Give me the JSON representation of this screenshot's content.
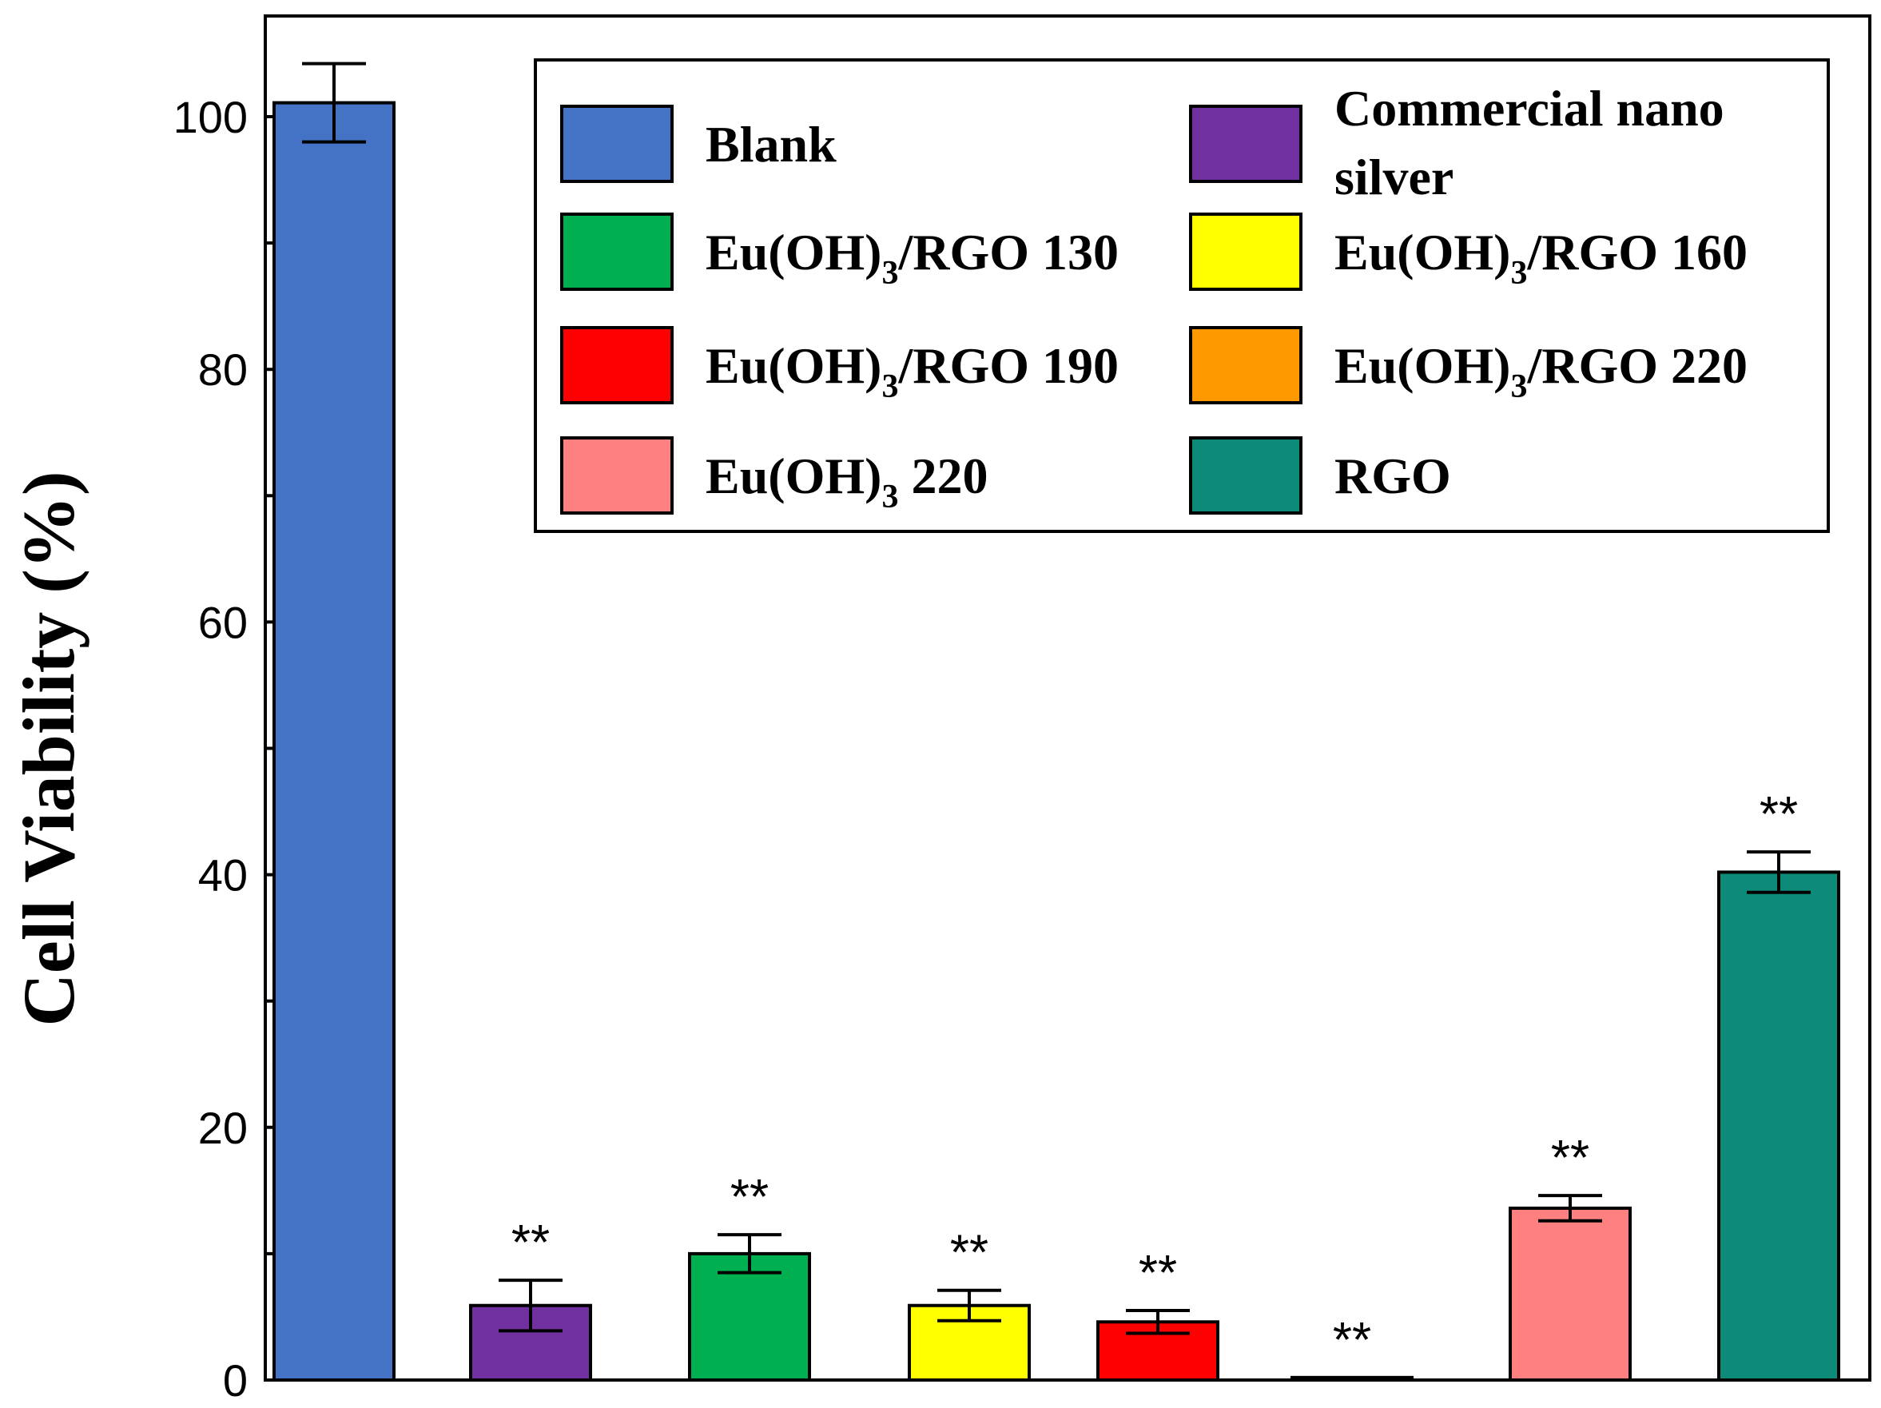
{
  "chart_data": {
    "type": "bar",
    "title": "",
    "xlabel": "",
    "ylabel": "Cell Viability (%)",
    "ylim": [
      0,
      107
    ],
    "yticks": [
      0,
      20,
      40,
      60,
      80,
      100
    ],
    "categories": [
      "Blank",
      "Commercial nano silver",
      "Eu(OH)3/RGO 130",
      "Eu(OH)3/RGO 160",
      "Eu(OH)3/RGO 190",
      "Eu(OH)3/RGO 220",
      "Eu(OH)3 220",
      "RGO"
    ],
    "values": [
      101.1,
      5.9,
      10.0,
      5.9,
      4.6,
      0.2,
      13.6,
      40.2
    ],
    "errors": [
      3.1,
      2.0,
      1.5,
      1.2,
      0.9,
      0.0,
      1.0,
      1.6
    ],
    "significance": [
      "",
      "**",
      "**",
      "**",
      "**",
      "**",
      "**",
      "**"
    ],
    "colors": [
      "#4472C4",
      "#7030A0",
      "#00B050",
      "#FFFF00",
      "#FF0000",
      "#FF9900",
      "#FF8080",
      "#0E8A78"
    ],
    "legend": {
      "position": "top-right",
      "entries": [
        {
          "base": "Blank",
          "sub": "",
          "tail": "",
          "color": "#4472C4"
        },
        {
          "base": "Commercial nano",
          "sub": "",
          "tail": "",
          "line2": "silver",
          "color": "#7030A0"
        },
        {
          "base": "Eu(OH)",
          "sub": "3",
          "tail": "/RGO 130",
          "color": "#00B050"
        },
        {
          "base": "Eu(OH)",
          "sub": "3",
          "tail": "/RGO 160",
          "color": "#FFFF00"
        },
        {
          "base": "Eu(OH)",
          "sub": "3",
          "tail": "/RGO 190",
          "color": "#FF0000"
        },
        {
          "base": "Eu(OH)",
          "sub": "3",
          "tail": "/RGO 220",
          "color": "#FF9900"
        },
        {
          "base": "Eu(OH)",
          "sub": "3",
          "tail": " 220",
          "color": "#FF8080"
        },
        {
          "base": "RGO",
          "sub": "",
          "tail": "",
          "color": "#0E8A78"
        }
      ]
    }
  }
}
